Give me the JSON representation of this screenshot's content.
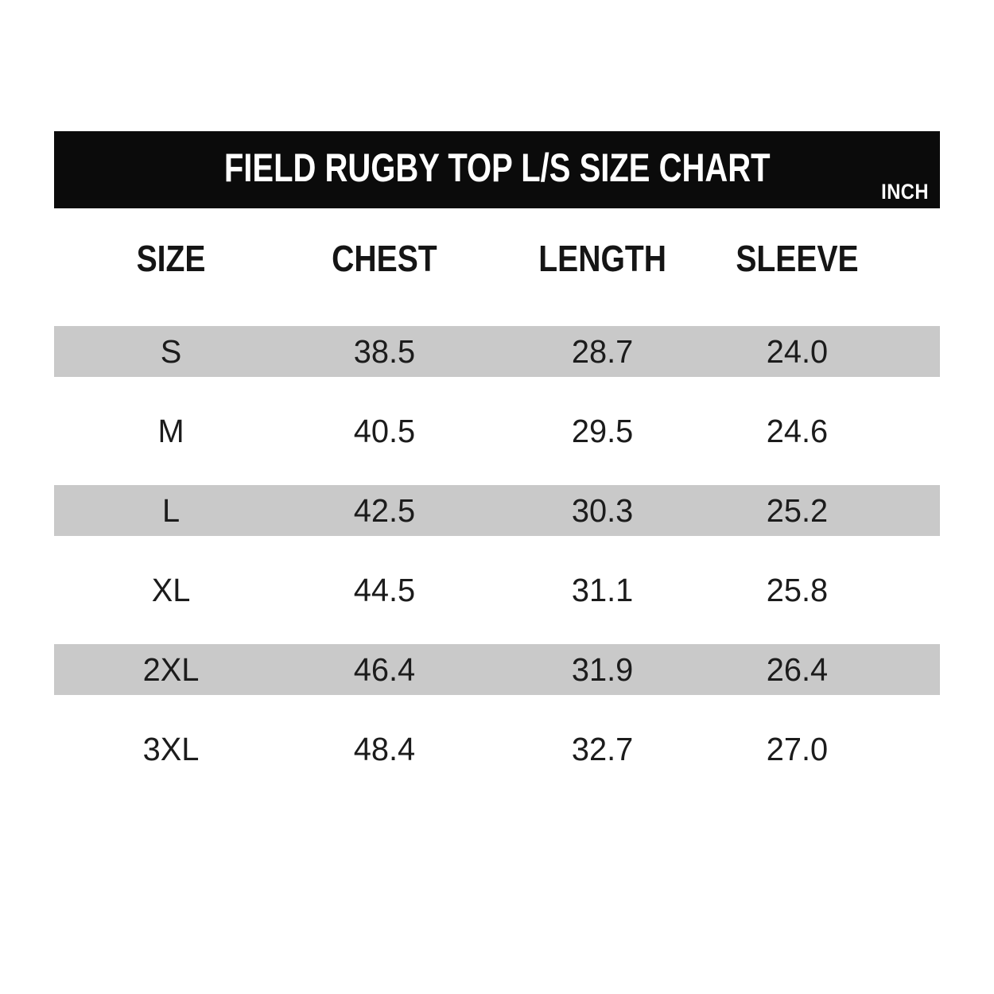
{
  "header": {
    "title": "FIELD RUGBY TOP L/S SIZE CHART",
    "unit_label": "INCH"
  },
  "colors": {
    "header_bg": "#0b0b0b",
    "header_text": "#ffffff",
    "stripe_bg": "#c9c9c9",
    "page_bg": "#ffffff"
  },
  "chart_data": {
    "type": "table",
    "title": "FIELD RUGBY TOP L/S SIZE CHART",
    "unit": "INCH",
    "columns": [
      "SIZE",
      "CHEST",
      "LENGTH",
      "SLEEVE"
    ],
    "rows": [
      {
        "size": "S",
        "chest": "38.5",
        "length": "28.7",
        "sleeve": "24.0"
      },
      {
        "size": "M",
        "chest": "40.5",
        "length": "29.5",
        "sleeve": "24.6"
      },
      {
        "size": "L",
        "chest": "42.5",
        "length": "30.3",
        "sleeve": "25.2"
      },
      {
        "size": "XL",
        "chest": "44.5",
        "length": "31.1",
        "sleeve": "25.8"
      },
      {
        "size": "2XL",
        "chest": "46.4",
        "length": "31.9",
        "sleeve": "26.4"
      },
      {
        "size": "3XL",
        "chest": "48.4",
        "length": "32.7",
        "sleeve": "27.0"
      }
    ],
    "layout": {
      "stripe_pattern": "odd rows (S, L, 2XL) shaded gray",
      "grid": "off",
      "legend": "none"
    }
  }
}
